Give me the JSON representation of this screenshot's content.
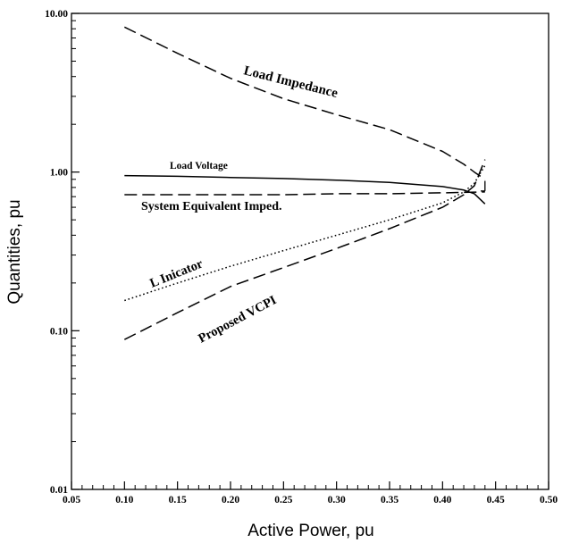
{
  "chart_data": {
    "type": "line",
    "title": "",
    "xlabel": "Active Power, pu",
    "ylabel": "Quantities, pu",
    "xlim": [
      0.05,
      0.5
    ],
    "ylim": [
      0.01,
      10.0
    ],
    "yscale": "log",
    "grid": false,
    "xticks": [
      "0.05",
      "0.10",
      "0.15",
      "0.20",
      "0.25",
      "0.30",
      "0.35",
      "0.40",
      "0.45",
      "0.50"
    ],
    "yticks": [
      "0.01",
      "0.10",
      "1.00",
      "10.00"
    ],
    "series": [
      {
        "name": "Load Impedance",
        "style": "dashed",
        "x": [
          0.1,
          0.15,
          0.2,
          0.25,
          0.3,
          0.35,
          0.4,
          0.42,
          0.43,
          0.44
        ],
        "y": [
          8.2,
          5.6,
          3.9,
          2.9,
          2.3,
          1.85,
          1.35,
          1.12,
          1.0,
          0.9
        ]
      },
      {
        "name": "Load Voltage",
        "style": "solid",
        "x": [
          0.1,
          0.15,
          0.2,
          0.25,
          0.3,
          0.35,
          0.4,
          0.42,
          0.43,
          0.44
        ],
        "y": [
          0.95,
          0.94,
          0.925,
          0.91,
          0.89,
          0.86,
          0.81,
          0.77,
          0.73,
          0.63
        ]
      },
      {
        "name": "System Equivalent Imped.",
        "style": "dashed",
        "x": [
          0.1,
          0.15,
          0.2,
          0.25,
          0.3,
          0.35,
          0.4,
          0.44
        ],
        "y": [
          0.72,
          0.72,
          0.72,
          0.72,
          0.73,
          0.73,
          0.74,
          0.75
        ]
      },
      {
        "name": "L Inicator",
        "style": "dotted",
        "x": [
          0.1,
          0.15,
          0.2,
          0.25,
          0.3,
          0.35,
          0.4,
          0.42,
          0.43,
          0.44
        ],
        "y": [
          0.155,
          0.2,
          0.255,
          0.32,
          0.4,
          0.5,
          0.64,
          0.75,
          0.85,
          1.1
        ]
      },
      {
        "name": "Proposed VCPI",
        "style": "dashed",
        "x": [
          0.1,
          0.15,
          0.2,
          0.25,
          0.3,
          0.35,
          0.4,
          0.42,
          0.43,
          0.44
        ],
        "y": [
          0.088,
          0.13,
          0.19,
          0.25,
          0.33,
          0.44,
          0.6,
          0.72,
          0.82,
          1.2
        ]
      }
    ]
  }
}
